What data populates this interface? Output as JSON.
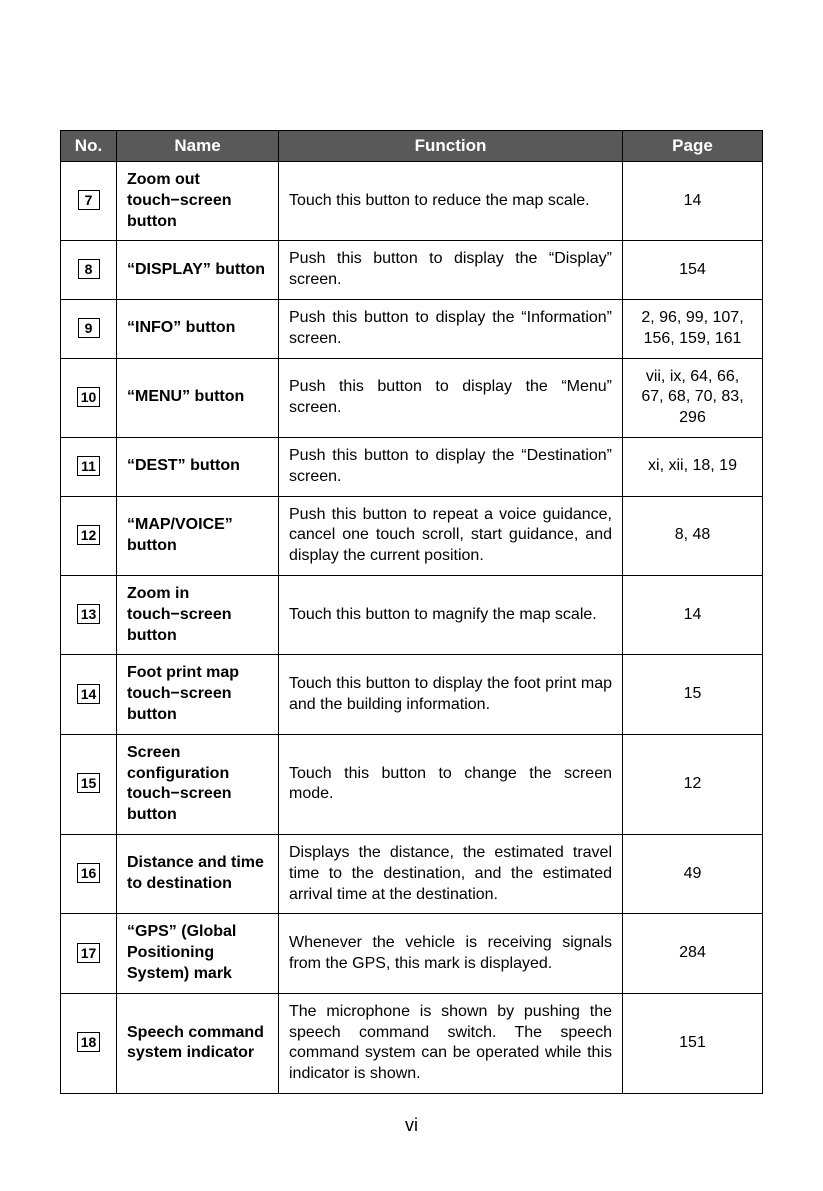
{
  "table": {
    "headers": {
      "no": "No.",
      "name": "Name",
      "function": "Function",
      "page": "Page"
    },
    "rows": [
      {
        "no": "7",
        "name": "Zoom out touch−screen button",
        "function": "Touch this button to reduce the map scale.",
        "page": "14"
      },
      {
        "no": "8",
        "name": "“DISPLAY” button",
        "function": "Push this button to display the “Display” screen.",
        "page": "154"
      },
      {
        "no": "9",
        "name": "“INFO” button",
        "function": "Push this button to display the “Information” screen.",
        "page": "2, 96, 99, 107, 156, 159, 161"
      },
      {
        "no": "10",
        "name": "“MENU” button",
        "function": "Push this button to display the “Menu” screen.",
        "page": "vii, ix, 64, 66, 67, 68, 70, 83, 296"
      },
      {
        "no": "11",
        "name": "“DEST” button",
        "function": "Push this button to display the “Destination” screen.",
        "page": "xi, xii, 18, 19"
      },
      {
        "no": "12",
        "name": "“MAP/VOICE” button",
        "function": "Push this button to repeat a voice guidance, cancel one touch scroll, start guidance, and display the current position.",
        "page": "8, 48"
      },
      {
        "no": "13",
        "name": "Zoom in touch−screen button",
        "function": "Touch this button to magnify the map scale.",
        "page": "14"
      },
      {
        "no": "14",
        "name": "Foot print map touch−screen button",
        "function": "Touch this button to display the foot print map and the building information.",
        "page": "15"
      },
      {
        "no": "15",
        "name": "Screen configuration touch−screen button",
        "function": "Touch this button to change the screen mode.",
        "page": "12"
      },
      {
        "no": "16",
        "name": "Distance and time to destination",
        "function": "Displays the distance, the estimated travel time to the destination, and the estimated arrival time at the destination.",
        "page": "49"
      },
      {
        "no": "17",
        "name": "“GPS” (Global Positioning System) mark",
        "function": "Whenever the vehicle is receiving signals from the GPS, this mark is displayed.",
        "page": "284"
      },
      {
        "no": "18",
        "name": "Speech command system indicator",
        "function": "The microphone is shown by pushing the speech command switch. The speech command system can be operated while this indicator is shown.",
        "page": "151"
      }
    ]
  },
  "footer": {
    "page_number": "vi"
  }
}
